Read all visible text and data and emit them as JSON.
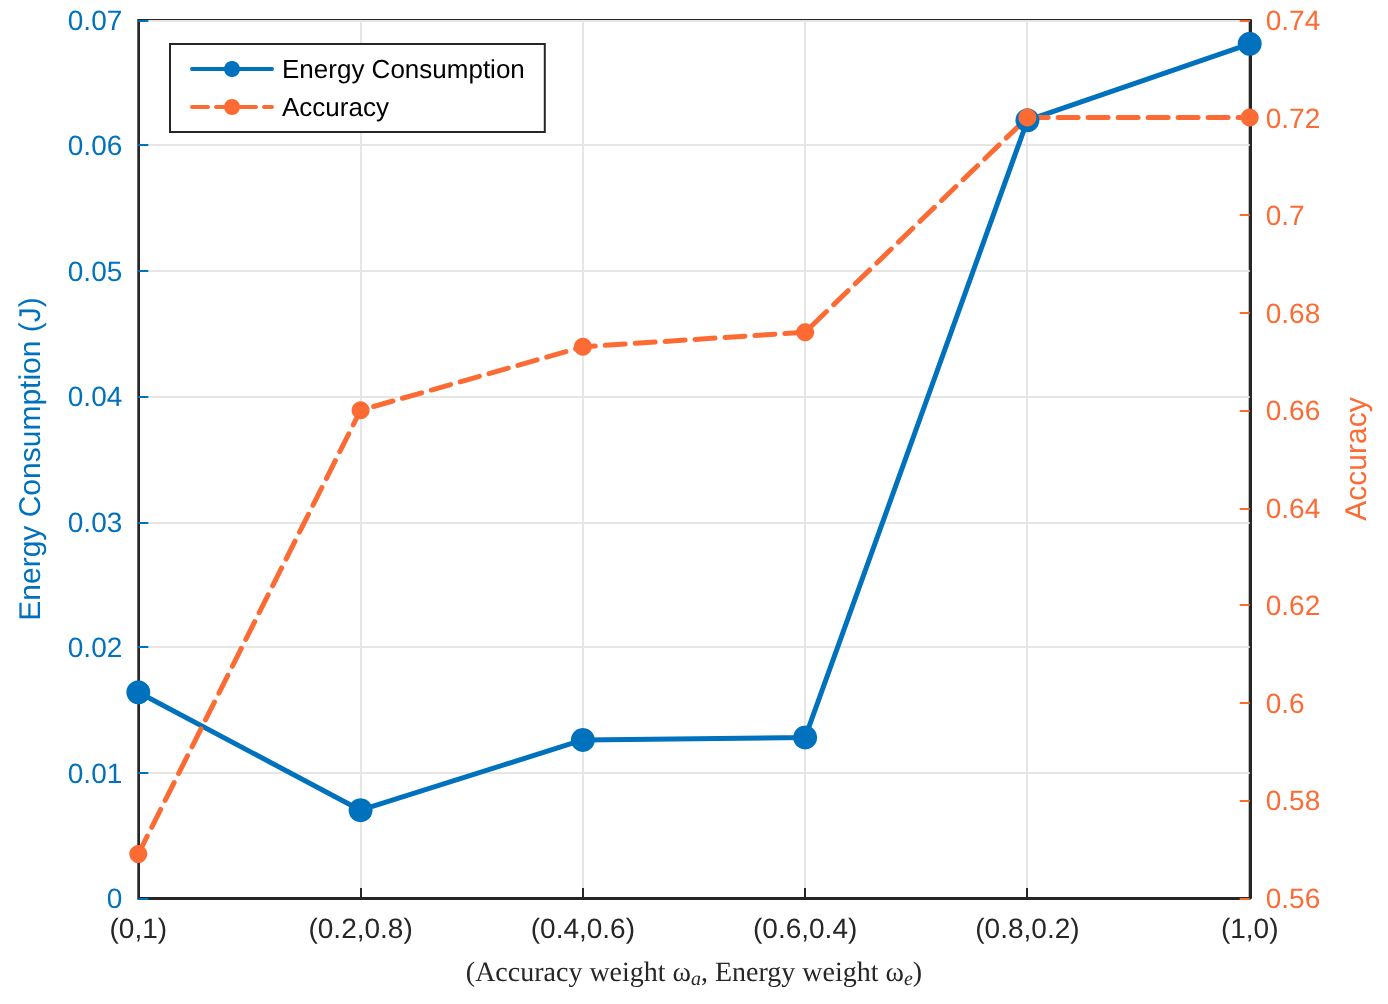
{
  "chart_data": {
    "type": "line",
    "xlabel": "(Accuracy weight ω$_{a}$, Energy weight ω$_{e}$)",
    "ylabel": "Energy Consumption (J)",
    "y2label": "Accuracy",
    "categories": [
      "(0,1)",
      "(0.2,0.8)",
      "(0.4,0.6)",
      "(0.6,0.4)",
      "(0.8,0.2)",
      "(1,0)"
    ],
    "series": [
      {
        "name": "Energy Consumption",
        "color": "#0072bd",
        "line_style": "solid",
        "values": [
          0.0164,
          0.007,
          0.0126,
          0.0128,
          0.062,
          0.0681
        ]
      },
      {
        "name": "Accuracy",
        "color": "#fd6b35",
        "line_style": "dashed",
        "axis": "y2",
        "values": [
          0.569,
          0.66,
          0.673,
          0.676,
          0.72,
          0.72
        ]
      }
    ],
    "ylim": [
      0,
      0.07
    ],
    "yticks": [
      0,
      0.01,
      0.02,
      0.03,
      0.04,
      0.05,
      0.06,
      0.07
    ],
    "y2lim": [
      0.56,
      0.74
    ],
    "y2ticks": [
      0.56,
      0.58,
      0.6,
      0.62,
      0.64,
      0.66,
      0.68,
      0.7,
      0.72,
      0.74
    ],
    "grid": true,
    "legend": "top left",
    "marker": "circle"
  }
}
